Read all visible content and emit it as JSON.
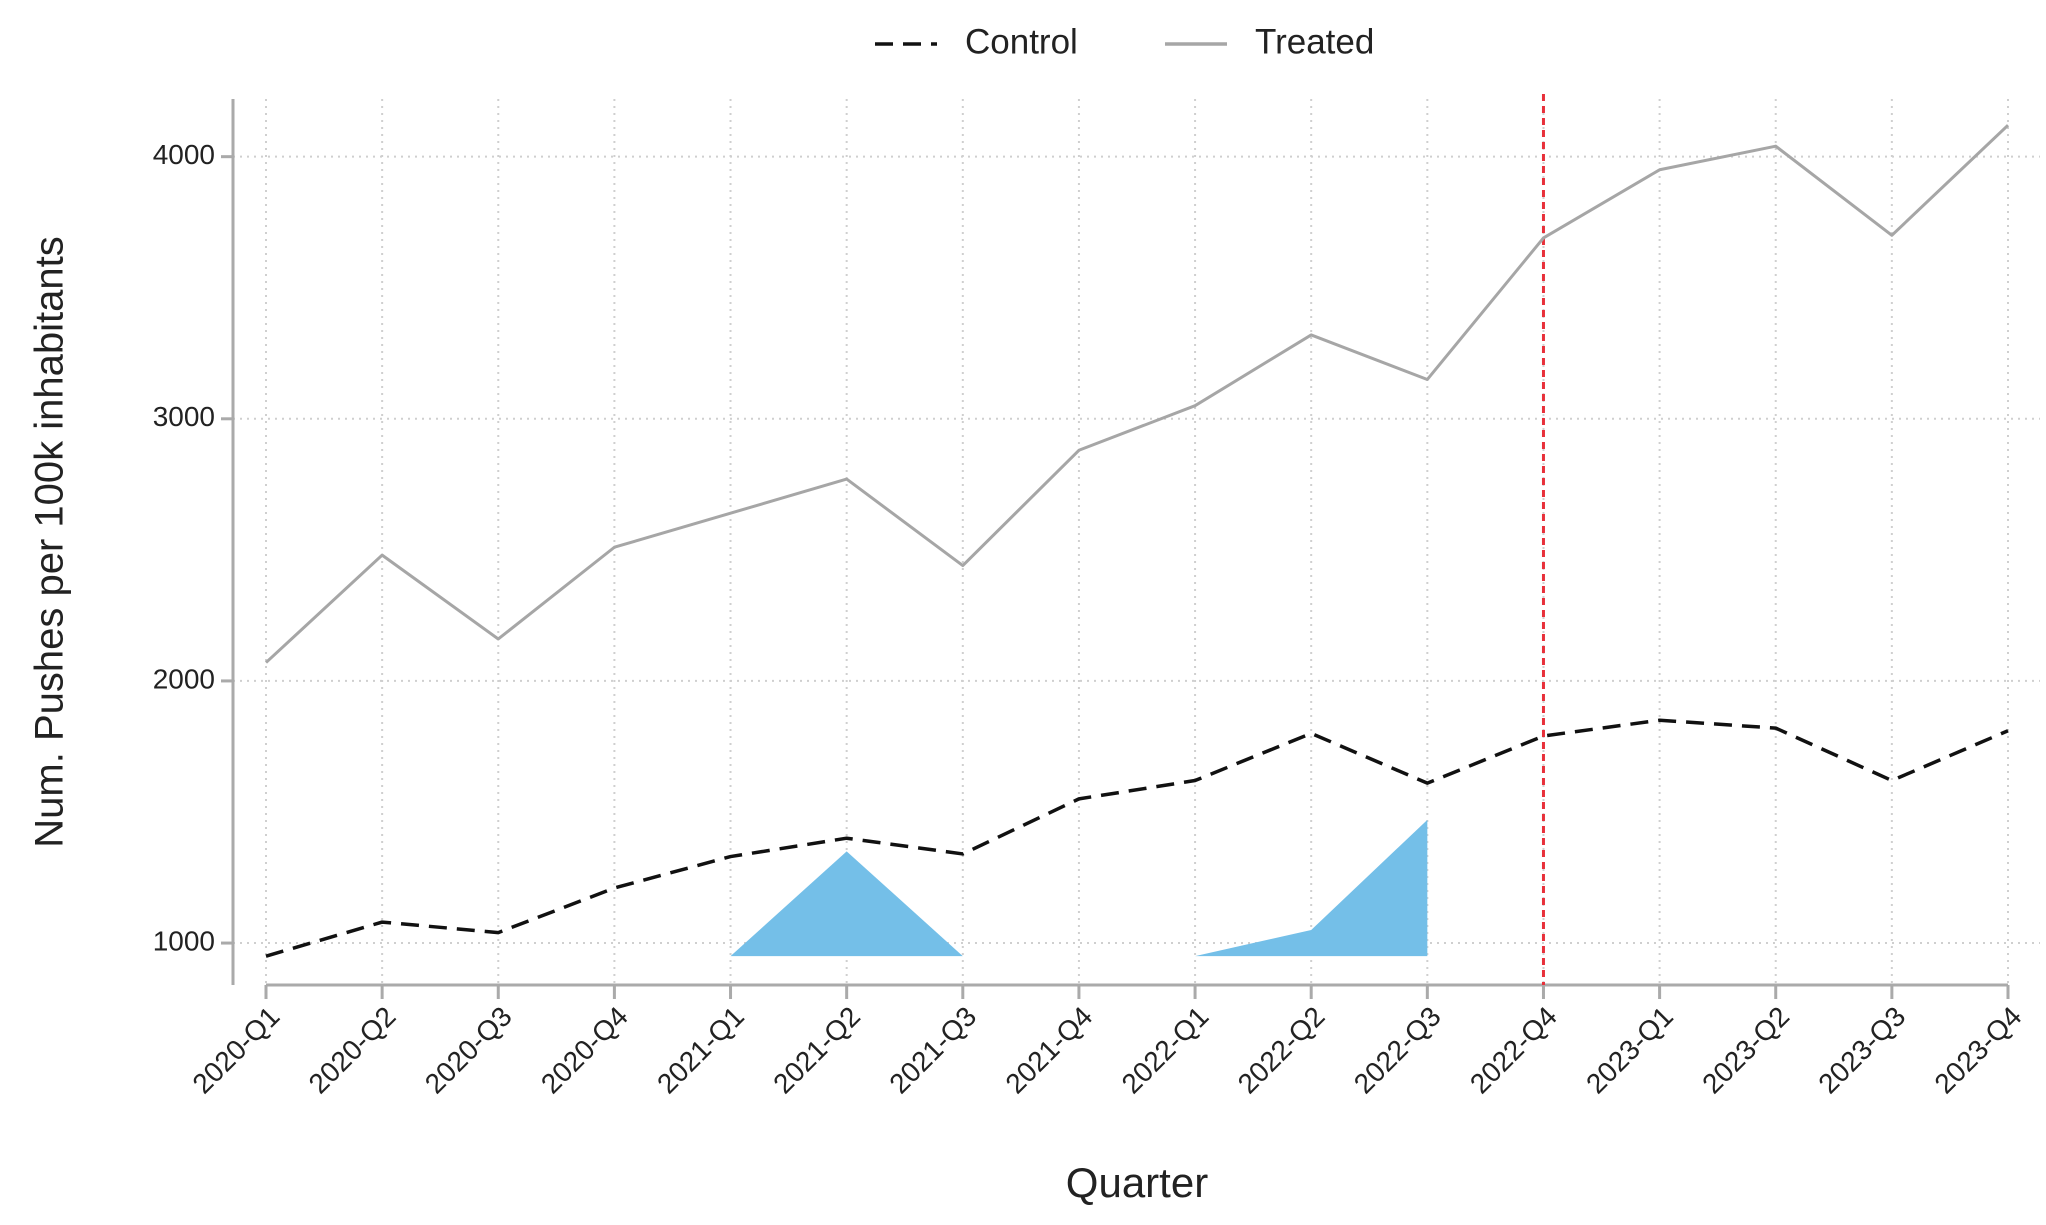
{
  "chart_data": {
    "type": "line",
    "x_label": "Quarter",
    "y_label": "Num. Pushes per 100k inhabitants",
    "categories": [
      "2020-Q1",
      "2020-Q2",
      "2020-Q3",
      "2020-Q4",
      "2021-Q1",
      "2021-Q2",
      "2021-Q3",
      "2021-Q4",
      "2022-Q1",
      "2022-Q2",
      "2022-Q3",
      "2022-Q4",
      "2023-Q1",
      "2023-Q2",
      "2023-Q3",
      "2023-Q4"
    ],
    "series": [
      {
        "name": "Control",
        "color": "#111111",
        "style": "dashed",
        "values": [
          950,
          1080,
          1040,
          1210,
          1330,
          1400,
          1340,
          1550,
          1620,
          1800,
          1610,
          1790,
          1850,
          1820,
          1620,
          1810
        ]
      },
      {
        "name": "Treated",
        "color": "#a6a6a6",
        "style": "solid",
        "values": [
          2070,
          2480,
          2160,
          2510,
          2640,
          2770,
          2440,
          2880,
          3050,
          3320,
          3150,
          3690,
          3950,
          4040,
          3700,
          4120
        ]
      }
    ],
    "areas": [
      {
        "color": "#74bfe8",
        "base": 950,
        "values": [
          null,
          null,
          null,
          null,
          950,
          1350,
          950,
          null,
          950,
          1050,
          1470,
          null,
          null,
          null,
          null,
          null
        ]
      }
    ],
    "vline": {
      "category": "2022-Q4",
      "color": "#e8303a"
    },
    "ylim": [
      840,
      4220
    ],
    "yticks": [
      1000,
      2000,
      3000,
      4000
    ],
    "grid": true,
    "legend": "top"
  }
}
